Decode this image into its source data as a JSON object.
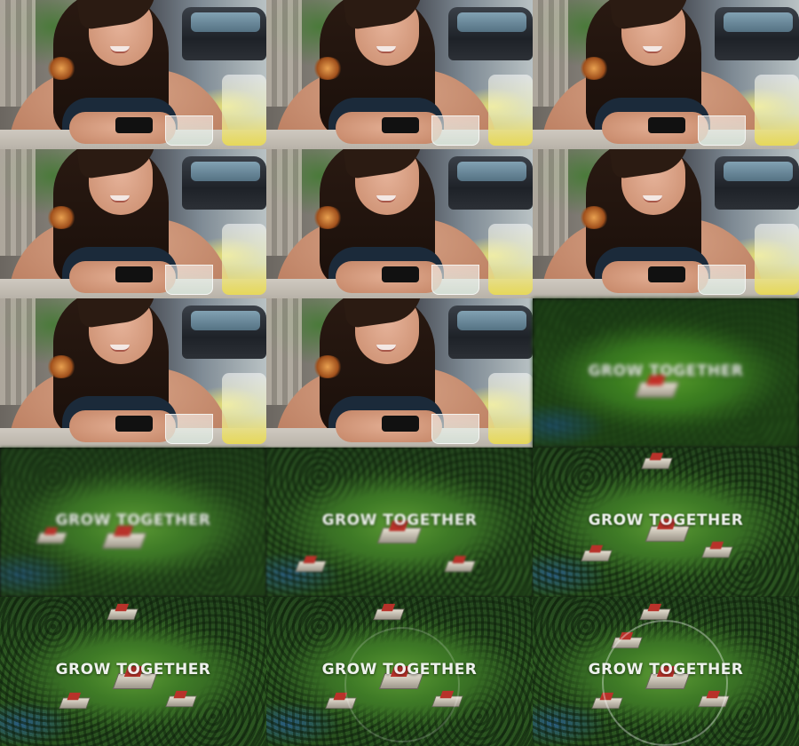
{
  "frames": [
    {
      "scene": "cafe"
    },
    {
      "scene": "cafe"
    },
    {
      "scene": "cafe"
    },
    {
      "scene": "cafe"
    },
    {
      "scene": "cafe"
    },
    {
      "scene": "cafe"
    },
    {
      "scene": "cafe"
    },
    {
      "scene": "cafe"
    },
    {
      "scene": "map",
      "tagline": "GROW TOGETHER",
      "blur": "heavy"
    },
    {
      "scene": "map",
      "tagline": "GROW TOGETHER",
      "blur": "heavy"
    },
    {
      "scene": "map",
      "tagline": "GROW TOGETHER",
      "blur": "medium"
    },
    {
      "scene": "map",
      "tagline": "GROW TOGETHER",
      "blur": "light"
    },
    {
      "scene": "map",
      "tagline": "GROW TOGETHER",
      "blur": "none"
    },
    {
      "scene": "map",
      "tagline": "GROW TOGETHER",
      "blur": "none",
      "ring": "faint"
    },
    {
      "scene": "map",
      "tagline": "GROW TOGETHER",
      "blur": "none",
      "ring": "visible"
    }
  ],
  "colors": {
    "grass": "#5c9a34",
    "forest": "#24461e",
    "water": "#2a5d80",
    "roof": "#b8322a",
    "tagline": "#ffffff"
  }
}
